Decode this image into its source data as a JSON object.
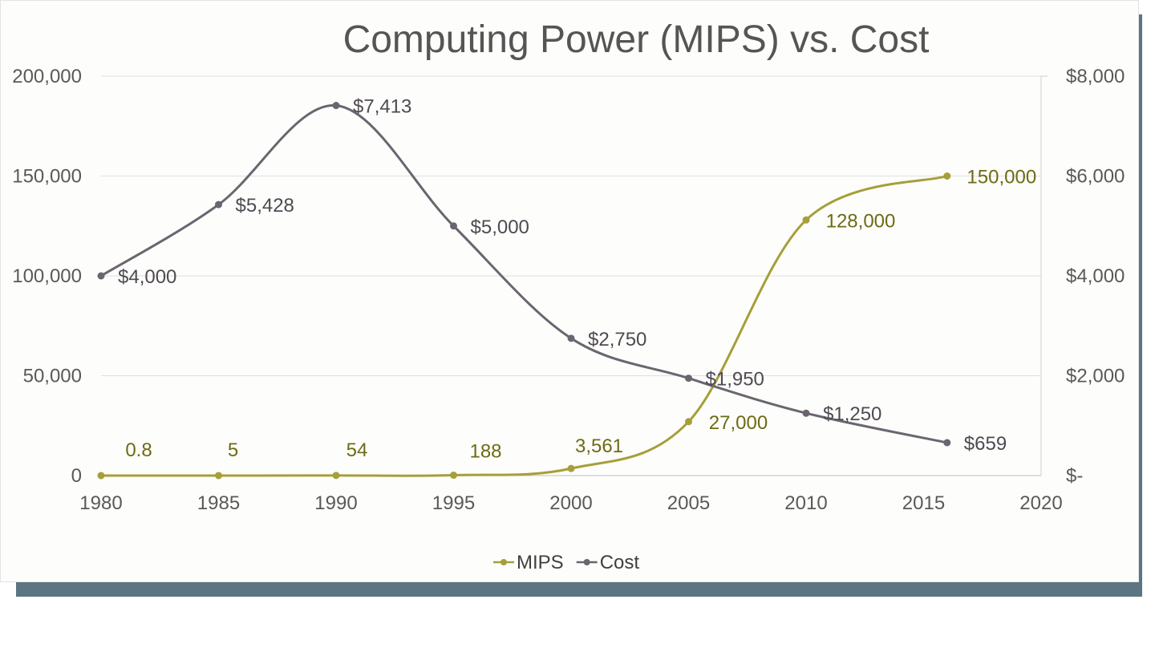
{
  "chart_data": {
    "type": "line",
    "title": "Computing Power (MIPS) vs. Cost",
    "x_ticks": [
      "1980",
      "1985",
      "1990",
      "1995",
      "2000",
      "2005",
      "2010",
      "2015",
      "2020"
    ],
    "xlim": [
      1980,
      2020
    ],
    "y_left": {
      "ylim": [
        0,
        200000
      ],
      "ticks": [
        "0",
        "50,000",
        "100,000",
        "150,000",
        "200,000"
      ]
    },
    "y_right": {
      "ylim": [
        0,
        8000
      ],
      "ticks": [
        "$-",
        "$2,000",
        "$4,000",
        "$6,000",
        "$8,000"
      ]
    },
    "grid": true,
    "legend_position": "bottom",
    "series": [
      {
        "name": "MIPS",
        "axis": "left",
        "color": "#a59f3a",
        "x": [
          1980,
          1985,
          1990,
          1995,
          2000,
          2005,
          2010,
          2016
        ],
        "values": [
          0.8,
          5,
          54,
          188,
          3561,
          27000,
          128000,
          150000
        ],
        "labels": [
          "0.8",
          "5",
          "54",
          "188",
          "3,561",
          "27,000",
          "128,000",
          "150,000"
        ]
      },
      {
        "name": "Cost",
        "axis": "right",
        "color": "#6b6570",
        "x": [
          1980,
          1985,
          1990,
          1995,
          2000,
          2005,
          2010,
          2016
        ],
        "values": [
          4000,
          5428,
          7413,
          5000,
          2750,
          1950,
          1250,
          659
        ],
        "labels": [
          "$4,000",
          "$5,428",
          "$7,413",
          "$5,000",
          "$2,750",
          "$1,950",
          "$1,250",
          "$659"
        ]
      }
    ]
  }
}
